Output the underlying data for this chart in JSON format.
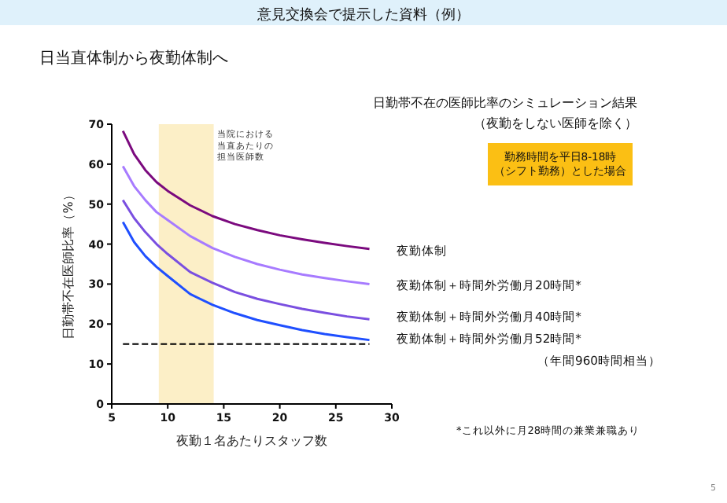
{
  "chart_data": {
    "type": "line",
    "title": "意見交換会で提示した資料（例）",
    "subtitle": "日当直体制から夜勤体制へ",
    "xlabel": "夜勤１名あたりスタッフ数",
    "ylabel": "日勤帯不在医師比率（%）",
    "xlim": [
      5,
      30
    ],
    "xticks": [
      5,
      10,
      15,
      20,
      25,
      30
    ],
    "ylim": [
      0,
      70
    ],
    "yticks": [
      0,
      10,
      20,
      30,
      40,
      50,
      60,
      70
    ],
    "x": [
      6,
      7,
      8,
      9,
      10,
      12,
      14,
      16,
      18,
      20,
      22,
      24,
      26,
      28
    ],
    "series": [
      {
        "name": "夜勤体制",
        "color": "#7b0a7e",
        "values": [
          68.3,
          62.5,
          58.5,
          55.5,
          53.3,
          49.7,
          47,
          45,
          43.5,
          42.2,
          41.2,
          40.3,
          39.5,
          38.8
        ]
      },
      {
        "name": "夜勤体制＋時間外労働月20時間*",
        "color": "#a77bff",
        "values": [
          59.5,
          54.5,
          51,
          48,
          46,
          42,
          39,
          36.8,
          35,
          33.6,
          32.4,
          31.5,
          30.7,
          30
        ]
      },
      {
        "name": "夜勤体制＋時間外労働月40時間*",
        "color": "#7a4fe0",
        "values": [
          51,
          46.5,
          43,
          40,
          37.5,
          33,
          30.3,
          28,
          26.3,
          25,
          23.8,
          22.8,
          21.9,
          21.2
        ]
      },
      {
        "name": "夜勤体制＋時間外労働月52時間*（年間960時間相当）",
        "color": "#1f4fff",
        "values": [
          45.5,
          40.5,
          37,
          34.3,
          32,
          27.5,
          24.8,
          22.7,
          21,
          19.7,
          18.5,
          17.5,
          16.7,
          16
        ]
      }
    ],
    "bands": [
      {
        "axis": "x",
        "from": 9.2,
        "to": 14.1,
        "label": "当院における当直あたりの担当医師数",
        "color": "#fcefc7"
      }
    ],
    "ref_lines": [
      {
        "axis": "y",
        "value": 15,
        "line_style": "dashed",
        "color": "#000000"
      }
    ],
    "annotations": [
      "日勤帯不在の医師比率のシミュレーション結果",
      "（夜勤をしない医師を除く）",
      "勤務時間を平日8-18時（シフト勤務）とした場合",
      "*これ以外に月28時間の兼業兼職あり",
      "5"
    ],
    "marker": "none",
    "line_style": "solid",
    "grid": false,
    "legend": false
  }
}
